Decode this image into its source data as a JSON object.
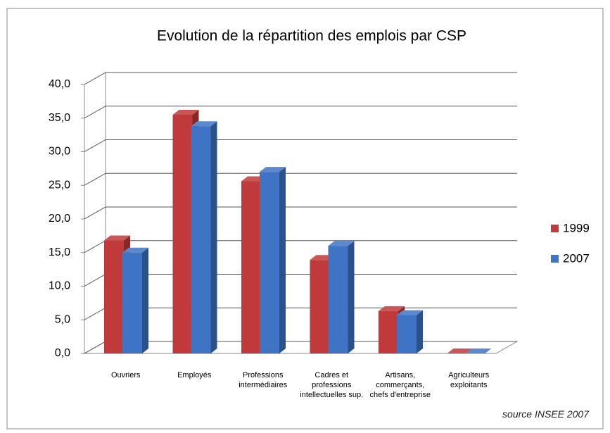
{
  "chart_data": {
    "type": "bar3d",
    "title": "Evolution de la répartition des emplois par CSP",
    "annotation": "source INSEE 2007",
    "categories": [
      "Ouvriers",
      "Employés",
      "Professions intermédiaires",
      "Cadres et professions intellectuelles sup.",
      "Artisans, commerçants, chefs d'entreprise",
      "Agriculteurs exploitants"
    ],
    "series": [
      {
        "name": "1999",
        "color": "#c0393b",
        "values": [
          16.8,
          35.5,
          25.6,
          13.9,
          6.3,
          0.0
        ]
      },
      {
        "name": "2007",
        "color": "#3f73c4",
        "values": [
          15.0,
          33.8,
          27.0,
          16.0,
          5.7,
          0.0
        ]
      }
    ],
    "ylim": [
      0,
      40
    ],
    "yticks": [
      {
        "value": 0,
        "label": "0,0"
      },
      {
        "value": 5,
        "label": "5,0"
      },
      {
        "value": 10,
        "label": "10,0"
      },
      {
        "value": 15,
        "label": "15,0"
      },
      {
        "value": 20,
        "label": "20,0"
      },
      {
        "value": 25,
        "label": "25,0"
      },
      {
        "value": 30,
        "label": "30,0"
      },
      {
        "value": 35,
        "label": "35,0"
      },
      {
        "value": 40,
        "label": "40,0"
      }
    ],
    "grid": true,
    "legend": "right"
  }
}
